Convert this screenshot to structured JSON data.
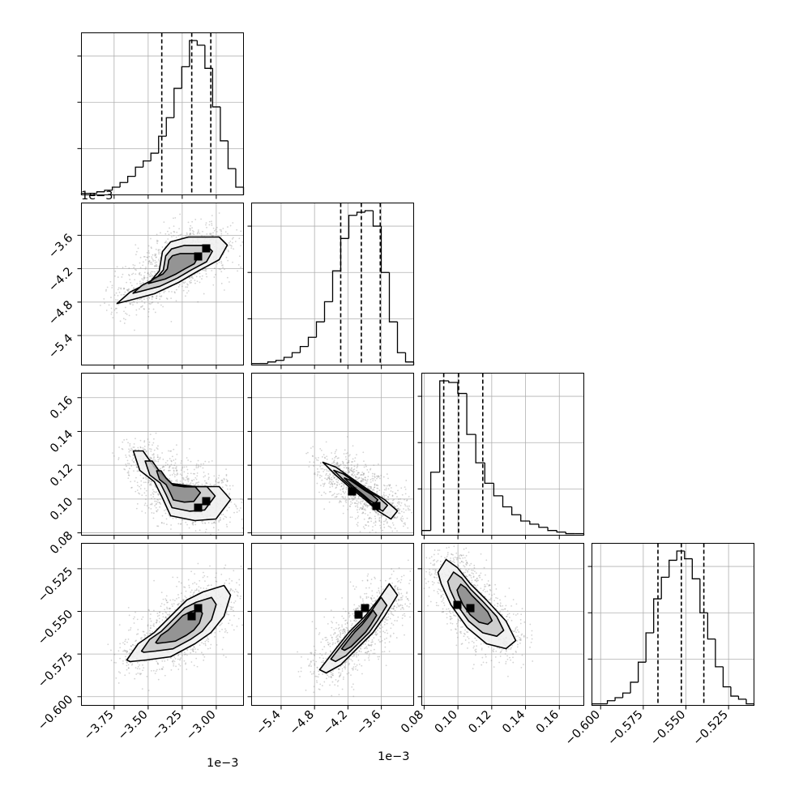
{
  "chart_data": {
    "type": "corner",
    "title": "",
    "grid": true,
    "colors": {
      "line": "#000000",
      "grid": "#b0b0b0",
      "points": "#808080",
      "background": "#ffffff"
    },
    "offset_labels": {
      "panel_1_0_y": "1e−3",
      "col_0_x": "1e−3",
      "col_1_x": "1e−3"
    },
    "parameters": [
      {
        "index": 0,
        "range": [
          -0.00399,
          -0.0028
        ],
        "ticks": [
          -0.00375,
          -0.0035,
          -0.00325,
          -0.003
        ],
        "tick_labels": [
          "−3.75",
          "−3.50",
          "−3.25",
          "−3.00"
        ],
        "quantiles": [
          -0.0034,
          -0.00318,
          -0.00304
        ],
        "histogram": [
          1,
          1,
          2,
          3,
          5,
          8,
          12,
          18,
          22,
          27,
          38,
          50,
          69,
          83,
          100,
          97,
          82,
          57,
          35,
          17,
          5
        ]
      },
      {
        "index": 1,
        "range": [
          -0.00593,
          -0.00302
        ],
        "ticks": [
          -0.0054,
          -0.0048,
          -0.0042,
          -0.0036
        ],
        "tick_labels": [
          "−5.4",
          "−4.8",
          "−4.2",
          "−3.6"
        ],
        "quantiles": [
          -0.00433,
          -0.00396,
          -0.00362
        ],
        "histogram": [
          1,
          1,
          2,
          3,
          5,
          8,
          12,
          18,
          28,
          41,
          61,
          82,
          97,
          99,
          100,
          90,
          60,
          28,
          8,
          2
        ]
      },
      {
        "index": 2,
        "range": [
          0.0786,
          0.1745
        ],
        "ticks": [
          0.08,
          0.1,
          0.12,
          0.14,
          0.16
        ],
        "tick_labels": [
          "0.08",
          "0.10",
          "0.12",
          "0.14",
          "0.16"
        ],
        "quantiles": [
          0.0916,
          0.1004,
          0.1147
        ],
        "histogram": [
          3,
          40,
          98,
          97,
          90,
          64,
          46,
          33,
          25,
          18,
          13,
          9,
          7,
          5,
          3,
          2,
          1,
          1
        ]
      },
      {
        "index": 3,
        "range": [
          -0.6051,
          -0.5101
        ],
        "ticks": [
          -0.6,
          -0.575,
          -0.55,
          -0.525
        ],
        "tick_labels": [
          "−0.600",
          "−0.575",
          "−0.550",
          "−0.525"
        ],
        "quantiles": [
          -0.5664,
          -0.5527,
          -0.5395
        ],
        "histogram": [
          1,
          1,
          3,
          5,
          8,
          15,
          28,
          47,
          69,
          83,
          94,
          100,
          95,
          82,
          60,
          43,
          25,
          12,
          6,
          4,
          1
        ]
      }
    ]
  }
}
